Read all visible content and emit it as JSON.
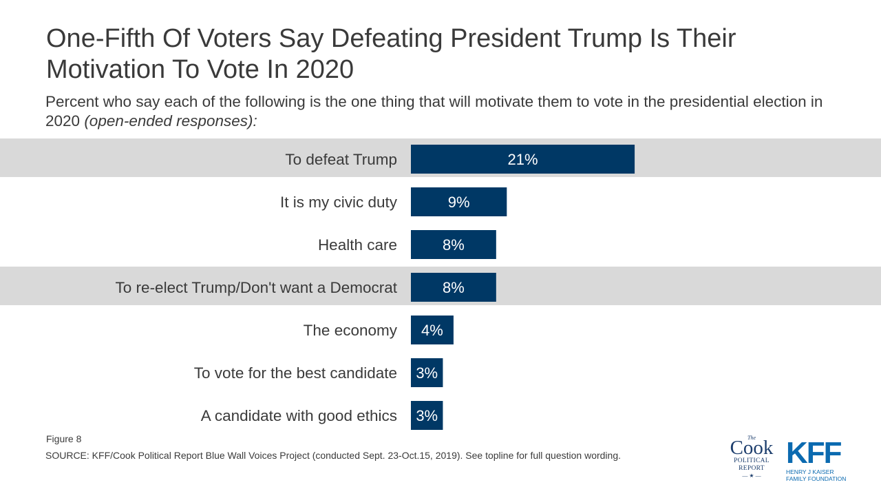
{
  "title": "One-Fifth Of Voters Say Defeating President Trump Is Their Motivation To Vote In 2020",
  "subtitle_main": "Percent who say each of the following is the one thing that will motivate them to vote in the presidential election in 2020 ",
  "subtitle_italic": "(open-ended responses):",
  "figure_label": "Figure 8",
  "source": "SOURCE: KFF/Cook Political Report Blue Wall Voices Project (conducted Sept. 23-Oct.15, 2019). See topline for full question wording.",
  "logos": {
    "cook_the": "The",
    "cook_name": "Cook",
    "cook_line1": "POLITICAL",
    "cook_line2": "REPORT",
    "kff_name": "KFF",
    "kff_line1": "HENRY J KAISER",
    "kff_line2": "FAMILY FOUNDATION"
  },
  "colors": {
    "bar": "#003865",
    "highlight_band": "#d9d9d9",
    "label_text": "#3a3a3a",
    "value_text": "#ffffff"
  },
  "chart_data": {
    "type": "bar",
    "orientation": "horizontal",
    "categories": [
      "To defeat Trump",
      "It is my civic duty",
      "Health care",
      "To re-elect Trump/Don't want a Democrat",
      "The economy",
      "To vote for the best candidate",
      "A candidate with good ethics"
    ],
    "values": [
      21,
      9,
      8,
      8,
      4,
      3,
      3
    ],
    "value_labels": [
      "21%",
      "9%",
      "8%",
      "8%",
      "4%",
      "3%",
      "3%"
    ],
    "highlighted": [
      true,
      false,
      false,
      true,
      false,
      false,
      false
    ],
    "xlim": [
      0,
      100
    ],
    "grid": false,
    "legend": "none"
  }
}
